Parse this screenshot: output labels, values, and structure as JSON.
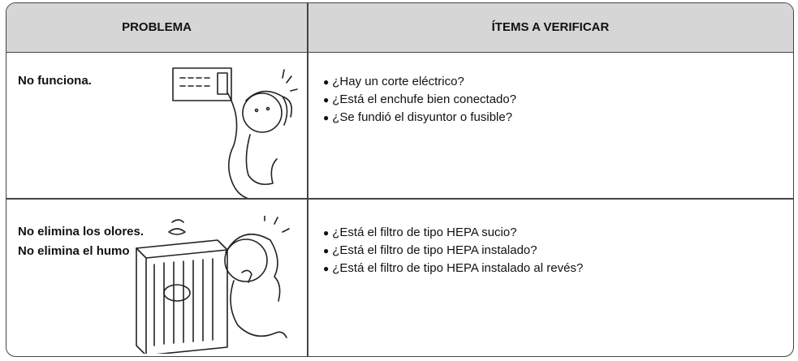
{
  "header": {
    "columns": [
      "PROBLEMA",
      "ÍTEMS A VERIFICAR"
    ]
  },
  "rows": [
    {
      "problem": [
        "No funciona."
      ],
      "items": [
        "¿Hay un corte eléctrico?",
        "¿Está el enchufe bien conectado?",
        "¿Se fundió el disyuntor o fusible?"
      ]
    },
    {
      "problem": [
        "No elimina los olores.",
        "No elimina el humo"
      ],
      "items": [
        "¿Está el filtro de tipo HEPA sucio?",
        "¿Está el filtro de tipo HEPA instalado?",
        "¿Está el filtro de tipo HEPA instalado al revés?"
      ]
    }
  ]
}
